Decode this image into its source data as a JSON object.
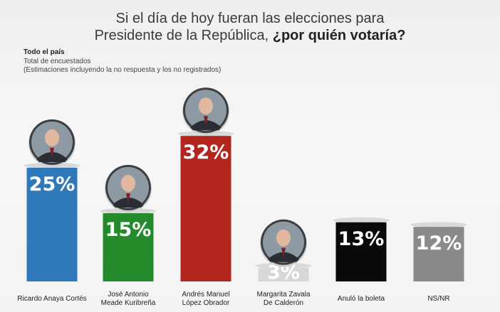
{
  "header": {
    "title_line1": "Si el día de hoy fueran las elecciones para",
    "title_line2_plain": "Presidente de la República, ",
    "title_line2_bold": "¿por quién votaría?",
    "scope": "Todo el país",
    "base": "Total de encuestados",
    "note": "(Estimaciones incluyendo  la no respuesta y los no registrados)"
  },
  "chart_data": {
    "type": "bar",
    "categories": [
      [
        "Ricardo Anaya Cortés"
      ],
      [
        "José Antonio",
        "Meade Kuribreña"
      ],
      [
        "Andrés Manuel",
        "López Obrador"
      ],
      [
        "Margarita Zavala",
        "De Calderón"
      ],
      [
        "Anuló la boleta"
      ],
      [
        "NS/NR"
      ]
    ],
    "values": [
      25,
      15,
      32,
      3,
      13,
      12
    ],
    "value_labels": [
      "25%",
      "15%",
      "32%",
      "3%",
      "13%",
      "12%"
    ],
    "colors": [
      "#2f78b9",
      "#258a2c",
      "#b3261e",
      "#d7d7d7",
      "#0a0a0a",
      "#8a8a8a"
    ],
    "photo_icons": [
      "person-portrait",
      "person-portrait",
      "person-portrait",
      "person-portrait",
      null,
      null
    ]
  }
}
